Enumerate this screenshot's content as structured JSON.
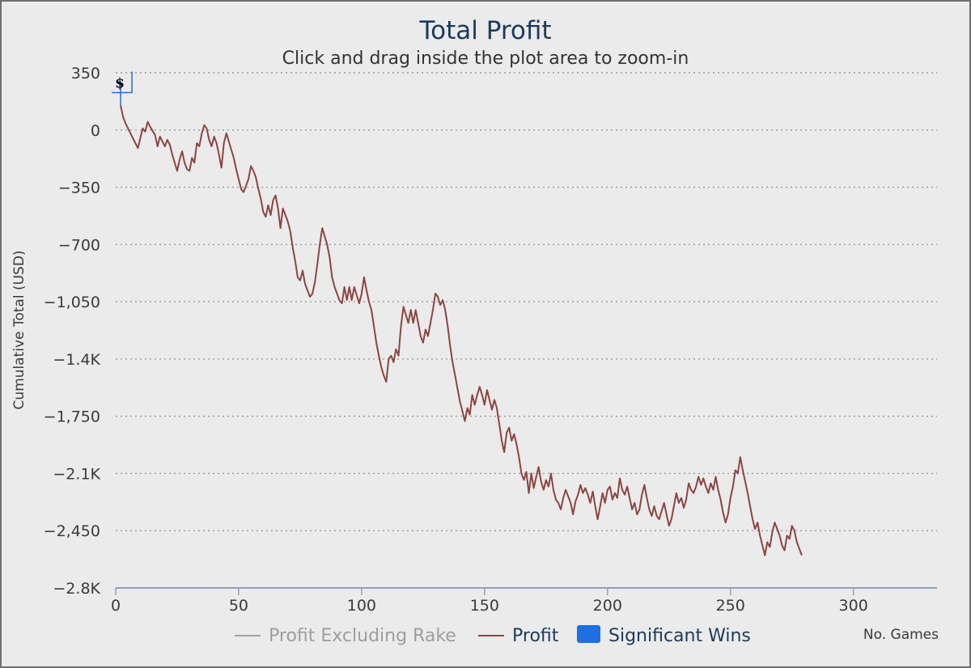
{
  "chart_data": {
    "type": "line",
    "title": "Total Profit",
    "subtitle": "Click and drag inside the plot area to zoom-in",
    "ylabel": "Cumulative Total (USD)",
    "xlabel": "No. Games",
    "xlim": [
      0,
      334
    ],
    "ylim": [
      -2800,
      350
    ],
    "x_ticks": [
      0,
      50,
      100,
      150,
      200,
      250,
      300
    ],
    "x_tick_labels": [
      "0",
      "50",
      "100",
      "150",
      "200",
      "250",
      "300"
    ],
    "y_ticks": [
      350,
      0,
      -350,
      -700,
      -1050,
      -1400,
      -1750,
      -2100,
      -2450,
      -2800
    ],
    "y_tick_labels": [
      "350",
      "0",
      "−350",
      "−700",
      "−1,050",
      "−1.4K",
      "−1,750",
      "−2.1K",
      "−2,450",
      "−2.8K"
    ],
    "grid": "dotted horizontal",
    "legend_position": "bottom",
    "legend": [
      {
        "name": "Profit Excluding Rake",
        "color": "#a3a3a3",
        "symbol": "line"
      },
      {
        "name": "Profit",
        "color": "#8b4543",
        "symbol": "line"
      },
      {
        "name": "Significant Wins",
        "color": "#1f6fe0",
        "symbol": "box"
      }
    ],
    "flags": [
      {
        "x": 2,
        "y": 150,
        "text": "$"
      }
    ],
    "series": [
      {
        "name": "Profit",
        "color": "#8b4543",
        "points": [
          [
            2,
            150
          ],
          [
            3,
            80
          ],
          [
            4,
            40
          ],
          [
            6,
            -20
          ],
          [
            8,
            -80
          ],
          [
            9,
            -110
          ],
          [
            10,
            -50
          ],
          [
            11,
            10
          ],
          [
            12,
            -10
          ],
          [
            13,
            50
          ],
          [
            14,
            20
          ],
          [
            16,
            -30
          ],
          [
            17,
            -100
          ],
          [
            18,
            -40
          ],
          [
            19,
            -70
          ],
          [
            20,
            -100
          ],
          [
            21,
            -60
          ],
          [
            22,
            -90
          ],
          [
            23,
            -150
          ],
          [
            24,
            -200
          ],
          [
            25,
            -250
          ],
          [
            26,
            -180
          ],
          [
            27,
            -130
          ],
          [
            28,
            -200
          ],
          [
            29,
            -240
          ],
          [
            30,
            -250
          ],
          [
            31,
            -170
          ],
          [
            32,
            -200
          ],
          [
            33,
            -80
          ],
          [
            34,
            -100
          ],
          [
            35,
            -20
          ],
          [
            36,
            30
          ],
          [
            37,
            10
          ],
          [
            38,
            -60
          ],
          [
            39,
            -100
          ],
          [
            40,
            -40
          ],
          [
            41,
            -80
          ],
          [
            42,
            -150
          ],
          [
            43,
            -230
          ],
          [
            44,
            -80
          ],
          [
            45,
            -20
          ],
          [
            46,
            -70
          ],
          [
            47,
            -120
          ],
          [
            48,
            -170
          ],
          [
            49,
            -240
          ],
          [
            50,
            -300
          ],
          [
            51,
            -360
          ],
          [
            52,
            -380
          ],
          [
            53,
            -340
          ],
          [
            54,
            -300
          ],
          [
            55,
            -220
          ],
          [
            56,
            -250
          ],
          [
            57,
            -290
          ],
          [
            58,
            -360
          ],
          [
            59,
            -420
          ],
          [
            60,
            -500
          ],
          [
            61,
            -530
          ],
          [
            62,
            -460
          ],
          [
            63,
            -520
          ],
          [
            64,
            -430
          ],
          [
            65,
            -400
          ],
          [
            66,
            -480
          ],
          [
            67,
            -600
          ],
          [
            68,
            -480
          ],
          [
            69,
            -520
          ],
          [
            70,
            -560
          ],
          [
            71,
            -620
          ],
          [
            72,
            -720
          ],
          [
            73,
            -800
          ],
          [
            74,
            -900
          ],
          [
            75,
            -920
          ],
          [
            76,
            -860
          ],
          [
            77,
            -940
          ],
          [
            78,
            -980
          ],
          [
            79,
            -1020
          ],
          [
            80,
            -1000
          ],
          [
            81,
            -930
          ],
          [
            82,
            -820
          ],
          [
            83,
            -700
          ],
          [
            84,
            -600
          ],
          [
            85,
            -650
          ],
          [
            86,
            -700
          ],
          [
            87,
            -780
          ],
          [
            88,
            -900
          ],
          [
            89,
            -960
          ],
          [
            90,
            -1000
          ],
          [
            91,
            -1040
          ],
          [
            92,
            -1060
          ],
          [
            93,
            -960
          ],
          [
            94,
            -1040
          ],
          [
            95,
            -960
          ],
          [
            96,
            -1040
          ],
          [
            97,
            -960
          ],
          [
            98,
            -1010
          ],
          [
            99,
            -1060
          ],
          [
            100,
            -1000
          ],
          [
            101,
            -900
          ],
          [
            102,
            -980
          ],
          [
            103,
            -1050
          ],
          [
            104,
            -1100
          ],
          [
            105,
            -1200
          ],
          [
            106,
            -1300
          ],
          [
            107,
            -1380
          ],
          [
            108,
            -1450
          ],
          [
            109,
            -1500
          ],
          [
            110,
            -1540
          ],
          [
            111,
            -1400
          ],
          [
            112,
            -1380
          ],
          [
            113,
            -1420
          ],
          [
            114,
            -1340
          ],
          [
            115,
            -1380
          ],
          [
            116,
            -1200
          ],
          [
            117,
            -1080
          ],
          [
            118,
            -1130
          ],
          [
            119,
            -1180
          ],
          [
            120,
            -1100
          ],
          [
            121,
            -1180
          ],
          [
            122,
            -1100
          ],
          [
            123,
            -1180
          ],
          [
            124,
            -1260
          ],
          [
            125,
            -1300
          ],
          [
            126,
            -1220
          ],
          [
            127,
            -1260
          ],
          [
            128,
            -1180
          ],
          [
            129,
            -1100
          ],
          [
            130,
            -1000
          ],
          [
            131,
            -1020
          ],
          [
            132,
            -1070
          ],
          [
            133,
            -1040
          ],
          [
            134,
            -1100
          ],
          [
            135,
            -1200
          ],
          [
            136,
            -1320
          ],
          [
            137,
            -1420
          ],
          [
            138,
            -1500
          ],
          [
            139,
            -1580
          ],
          [
            140,
            -1660
          ],
          [
            141,
            -1720
          ],
          [
            142,
            -1780
          ],
          [
            143,
            -1700
          ],
          [
            144,
            -1740
          ],
          [
            145,
            -1620
          ],
          [
            146,
            -1680
          ],
          [
            147,
            -1620
          ],
          [
            148,
            -1570
          ],
          [
            149,
            -1620
          ],
          [
            150,
            -1680
          ],
          [
            151,
            -1590
          ],
          [
            152,
            -1650
          ],
          [
            153,
            -1710
          ],
          [
            154,
            -1650
          ],
          [
            155,
            -1700
          ],
          [
            156,
            -1800
          ],
          [
            157,
            -1900
          ],
          [
            158,
            -1970
          ],
          [
            159,
            -1850
          ],
          [
            160,
            -1820
          ],
          [
            161,
            -1900
          ],
          [
            162,
            -1860
          ],
          [
            163,
            -1920
          ],
          [
            164,
            -2000
          ],
          [
            165,
            -2100
          ],
          [
            166,
            -2140
          ],
          [
            167,
            -2090
          ],
          [
            168,
            -2220
          ],
          [
            169,
            -2100
          ],
          [
            170,
            -2190
          ],
          [
            171,
            -2120
          ],
          [
            172,
            -2060
          ],
          [
            173,
            -2150
          ],
          [
            174,
            -2200
          ],
          [
            175,
            -2140
          ],
          [
            176,
            -2180
          ],
          [
            177,
            -2100
          ],
          [
            178,
            -2200
          ],
          [
            179,
            -2260
          ],
          [
            180,
            -2280
          ],
          [
            181,
            -2320
          ],
          [
            182,
            -2250
          ],
          [
            183,
            -2200
          ],
          [
            184,
            -2240
          ],
          [
            185,
            -2280
          ],
          [
            186,
            -2350
          ],
          [
            187,
            -2270
          ],
          [
            188,
            -2230
          ],
          [
            189,
            -2170
          ],
          [
            190,
            -2220
          ],
          [
            191,
            -2190
          ],
          [
            192,
            -2230
          ],
          [
            193,
            -2280
          ],
          [
            194,
            -2210
          ],
          [
            195,
            -2300
          ],
          [
            196,
            -2380
          ],
          [
            197,
            -2300
          ],
          [
            198,
            -2220
          ],
          [
            199,
            -2280
          ],
          [
            200,
            -2200
          ],
          [
            201,
            -2180
          ],
          [
            202,
            -2260
          ],
          [
            203,
            -2220
          ],
          [
            204,
            -2250
          ],
          [
            205,
            -2130
          ],
          [
            206,
            -2200
          ],
          [
            207,
            -2230
          ],
          [
            208,
            -2180
          ],
          [
            209,
            -2250
          ],
          [
            210,
            -2320
          ],
          [
            211,
            -2280
          ],
          [
            212,
            -2350
          ],
          [
            213,
            -2320
          ],
          [
            214,
            -2230
          ],
          [
            215,
            -2170
          ],
          [
            216,
            -2250
          ],
          [
            217,
            -2320
          ],
          [
            218,
            -2360
          ],
          [
            219,
            -2300
          ],
          [
            220,
            -2360
          ],
          [
            221,
            -2380
          ],
          [
            222,
            -2330
          ],
          [
            223,
            -2280
          ],
          [
            224,
            -2350
          ],
          [
            225,
            -2420
          ],
          [
            226,
            -2380
          ],
          [
            227,
            -2300
          ],
          [
            228,
            -2220
          ],
          [
            229,
            -2280
          ],
          [
            230,
            -2250
          ],
          [
            231,
            -2310
          ],
          [
            232,
            -2260
          ],
          [
            233,
            -2160
          ],
          [
            234,
            -2200
          ],
          [
            235,
            -2220
          ],
          [
            236,
            -2180
          ],
          [
            237,
            -2120
          ],
          [
            238,
            -2170
          ],
          [
            239,
            -2130
          ],
          [
            240,
            -2180
          ],
          [
            241,
            -2220
          ],
          [
            242,
            -2160
          ],
          [
            243,
            -2200
          ],
          [
            244,
            -2120
          ],
          [
            245,
            -2200
          ],
          [
            246,
            -2260
          ],
          [
            247,
            -2340
          ],
          [
            248,
            -2400
          ],
          [
            249,
            -2350
          ],
          [
            250,
            -2250
          ],
          [
            251,
            -2180
          ],
          [
            252,
            -2080
          ],
          [
            253,
            -2100
          ],
          [
            254,
            -2000
          ],
          [
            255,
            -2080
          ],
          [
            256,
            -2150
          ],
          [
            257,
            -2220
          ],
          [
            258,
            -2300
          ],
          [
            259,
            -2380
          ],
          [
            260,
            -2440
          ],
          [
            261,
            -2400
          ],
          [
            262,
            -2480
          ],
          [
            263,
            -2540
          ],
          [
            264,
            -2600
          ],
          [
            265,
            -2520
          ],
          [
            266,
            -2550
          ],
          [
            267,
            -2460
          ],
          [
            268,
            -2400
          ],
          [
            269,
            -2440
          ],
          [
            270,
            -2480
          ],
          [
            271,
            -2540
          ],
          [
            272,
            -2570
          ],
          [
            273,
            -2480
          ],
          [
            274,
            -2500
          ],
          [
            275,
            -2420
          ],
          [
            276,
            -2450
          ],
          [
            277,
            -2520
          ],
          [
            278,
            -2560
          ],
          [
            279,
            -2600
          ]
        ]
      }
    ]
  }
}
